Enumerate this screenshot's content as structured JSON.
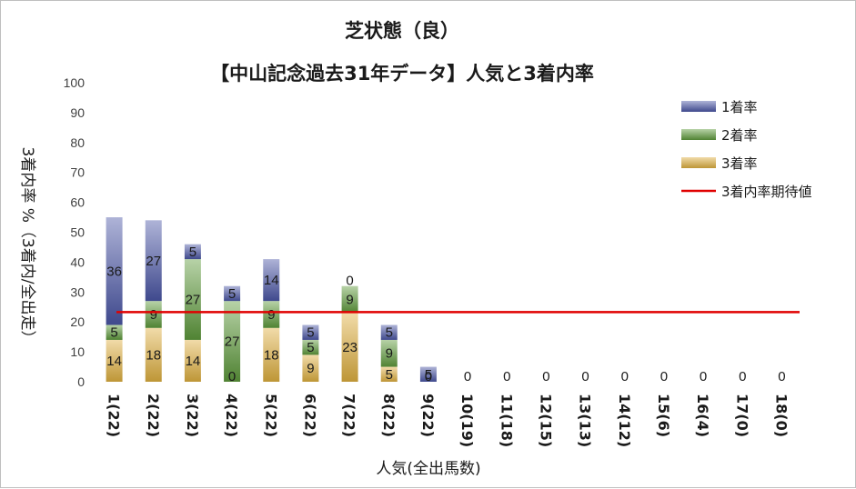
{
  "chart_data": {
    "type": "bar",
    "title": "芝状態（良）",
    "subtitle": "【中山記念過去31年データ】人気と3着内率",
    "xlabel": "人気(全出馬数)",
    "ylabel": "3着内率 %（3着内/全出走）",
    "ylim": [
      0,
      100
    ],
    "yticks": [
      "0",
      "10",
      "20",
      "30",
      "40",
      "50",
      "60",
      "70",
      "80",
      "90",
      "100"
    ],
    "grid": false,
    "legend_position": "right",
    "categories": [
      "1(22)",
      "2(22)",
      "3(22)",
      "4(22)",
      "5(22)",
      "6(22)",
      "7(22)",
      "8(22)",
      "9(22)",
      "10(19)",
      "11(18)",
      "12(15)",
      "13(13)",
      "14(12)",
      "15(6)",
      "16(4)",
      "17(0)",
      "18(0)"
    ],
    "series": [
      {
        "name": "1着率",
        "color": "#4a56a6",
        "values": [
          36,
          27,
          5,
          5,
          14,
          5,
          0,
          5,
          5,
          0,
          0,
          0,
          0,
          0,
          0,
          0,
          0,
          0
        ]
      },
      {
        "name": "2着率",
        "color": "#5e9a3c",
        "values": [
          5,
          9,
          27,
          27,
          9,
          5,
          9,
          9,
          0,
          0,
          0,
          0,
          0,
          0,
          0,
          0,
          0,
          0
        ]
      },
      {
        "name": "3着率",
        "color": "#e0b040",
        "values": [
          14,
          18,
          14,
          0,
          18,
          9,
          23,
          5,
          0,
          0,
          0,
          0,
          0,
          0,
          0,
          0,
          0,
          0
        ]
      }
    ],
    "data_labels": [
      [
        "36",
        "27",
        "5",
        "5",
        "14",
        "5",
        "0",
        "5",
        "5",
        "",
        "",
        "",
        "",
        "",
        "",
        "",
        "",
        ""
      ],
      [
        "5",
        "9",
        "27",
        "27",
        "9",
        "5",
        "9",
        "9",
        "0",
        "",
        "",
        "",
        "",
        "",
        "",
        "",
        "",
        ""
      ],
      [
        "14",
        "18",
        "14",
        "0",
        "18",
        "9",
        "23",
        "5",
        "",
        "0",
        "0",
        "0",
        "0",
        "0",
        "0",
        "0",
        "0",
        "0"
      ]
    ],
    "reference_line": {
      "name": "3着内率期待値",
      "value": 23.3,
      "color": "#e00000"
    }
  }
}
